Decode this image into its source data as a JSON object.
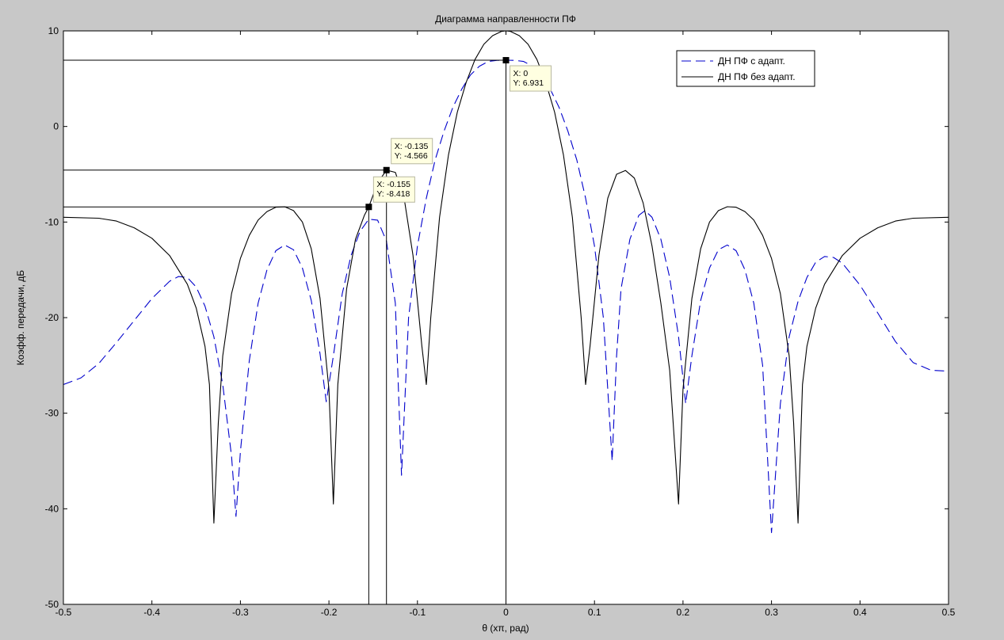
{
  "chart_data": {
    "type": "line",
    "title": "Диаграмма направленности ПФ",
    "xlabel": "θ (xπ, рад)",
    "ylabel": "Коэфф. передачи, дБ",
    "xlim": [
      -0.5,
      0.5
    ],
    "ylim": [
      -50,
      10
    ],
    "xticks": [
      -0.5,
      -0.4,
      -0.3,
      -0.2,
      -0.1,
      0,
      0.1,
      0.2,
      0.3,
      0.4,
      0.5
    ],
    "xtick_labels": [
      "-0.5",
      "-0.4",
      "-0.3",
      "-0.2",
      "-0.1",
      "0",
      "0.1",
      "0.2",
      "0.3",
      "0.4",
      "0.5"
    ],
    "yticks": [
      -50,
      -40,
      -30,
      -20,
      -10,
      0,
      10
    ],
    "ytick_labels": [
      "-50",
      "-40",
      "-30",
      "-20",
      "-10",
      "0",
      "10"
    ],
    "grid": false,
    "legend_position": "top-right",
    "series": [
      {
        "name": "ДН ПФ с адапт.",
        "color": "#0000cc",
        "style": "dashed",
        "points": [
          [
            -0.5,
            -27
          ],
          [
            -0.48,
            -26.3
          ],
          [
            -0.46,
            -24.8
          ],
          [
            -0.44,
            -22.6
          ],
          [
            -0.42,
            -20.3
          ],
          [
            -0.4,
            -18.0
          ],
          [
            -0.38,
            -16.2
          ],
          [
            -0.37,
            -15.7
          ],
          [
            -0.36,
            -15.8
          ],
          [
            -0.35,
            -16.8
          ],
          [
            -0.34,
            -18.8
          ],
          [
            -0.33,
            -22.0
          ],
          [
            -0.32,
            -27.0
          ],
          [
            -0.31,
            -34.5
          ],
          [
            -0.305,
            -40.8
          ],
          [
            -0.3,
            -34.0
          ],
          [
            -0.29,
            -24.5
          ],
          [
            -0.28,
            -18.5
          ],
          [
            -0.27,
            -15.0
          ],
          [
            -0.26,
            -13.0
          ],
          [
            -0.25,
            -12.4
          ],
          [
            -0.24,
            -12.9
          ],
          [
            -0.23,
            -14.8
          ],
          [
            -0.22,
            -18.2
          ],
          [
            -0.21,
            -23.8
          ],
          [
            -0.203,
            -28.8
          ],
          [
            -0.195,
            -24.0
          ],
          [
            -0.185,
            -17.5
          ],
          [
            -0.175,
            -13.5
          ],
          [
            -0.165,
            -11.0
          ],
          [
            -0.155,
            -9.7
          ],
          [
            -0.145,
            -9.8
          ],
          [
            -0.135,
            -12.0
          ],
          [
            -0.125,
            -18.5
          ],
          [
            -0.118,
            -36.5
          ],
          [
            -0.11,
            -20.0
          ],
          [
            -0.1,
            -12.5
          ],
          [
            -0.09,
            -7.5
          ],
          [
            -0.08,
            -3.5
          ],
          [
            -0.07,
            -0.5
          ],
          [
            -0.06,
            2.0
          ],
          [
            -0.05,
            3.9
          ],
          [
            -0.04,
            5.4
          ],
          [
            -0.03,
            6.3
          ],
          [
            -0.02,
            6.8
          ],
          [
            -0.01,
            6.92
          ],
          [
            0,
            6.931
          ],
          [
            0.01,
            6.92
          ],
          [
            0.02,
            6.8
          ],
          [
            0.03,
            6.3
          ],
          [
            0.04,
            5.4
          ],
          [
            0.05,
            3.9
          ],
          [
            0.06,
            2.0
          ],
          [
            0.07,
            -0.5
          ],
          [
            0.08,
            -3.5
          ],
          [
            0.09,
            -7.5
          ],
          [
            0.1,
            -12.5
          ],
          [
            0.11,
            -20.0
          ],
          [
            0.12,
            -35.0
          ],
          [
            0.125,
            -24.0
          ],
          [
            0.13,
            -17.0
          ],
          [
            0.14,
            -11.8
          ],
          [
            0.15,
            -9.3
          ],
          [
            0.157,
            -8.8
          ],
          [
            0.165,
            -9.5
          ],
          [
            0.175,
            -11.8
          ],
          [
            0.185,
            -15.8
          ],
          [
            0.195,
            -22.0
          ],
          [
            0.203,
            -29.0
          ],
          [
            0.21,
            -24.0
          ],
          [
            0.22,
            -18.2
          ],
          [
            0.23,
            -14.8
          ],
          [
            0.24,
            -12.9
          ],
          [
            0.25,
            -12.4
          ],
          [
            0.26,
            -13.0
          ],
          [
            0.27,
            -15.0
          ],
          [
            0.28,
            -18.5
          ],
          [
            0.29,
            -25.0
          ],
          [
            0.3,
            -42.5
          ],
          [
            0.31,
            -29.0
          ],
          [
            0.32,
            -22.0
          ],
          [
            0.33,
            -18.3
          ],
          [
            0.34,
            -15.8
          ],
          [
            0.35,
            -14.2
          ],
          [
            0.36,
            -13.6
          ],
          [
            0.37,
            -13.7
          ],
          [
            0.38,
            -14.3
          ],
          [
            0.4,
            -16.6
          ],
          [
            0.42,
            -19.5
          ],
          [
            0.44,
            -22.5
          ],
          [
            0.46,
            -24.7
          ],
          [
            0.48,
            -25.5
          ],
          [
            0.5,
            -25.6
          ]
        ]
      },
      {
        "name": "ДН ПФ без адапт.",
        "color": "#000000",
        "style": "solid",
        "points": [
          [
            -0.5,
            -9.5
          ],
          [
            -0.46,
            -9.6
          ],
          [
            -0.44,
            -9.9
          ],
          [
            -0.42,
            -10.6
          ],
          [
            -0.4,
            -11.7
          ],
          [
            -0.38,
            -13.5
          ],
          [
            -0.36,
            -16.5
          ],
          [
            -0.35,
            -19.0
          ],
          [
            -0.34,
            -23.0
          ],
          [
            -0.335,
            -27.0
          ],
          [
            -0.33,
            -41.5
          ],
          [
            -0.325,
            -31.0
          ],
          [
            -0.32,
            -24.0
          ],
          [
            -0.31,
            -17.5
          ],
          [
            -0.3,
            -13.8
          ],
          [
            -0.29,
            -11.4
          ],
          [
            -0.28,
            -9.8
          ],
          [
            -0.27,
            -8.9
          ],
          [
            -0.26,
            -8.45
          ],
          [
            -0.25,
            -8.4
          ],
          [
            -0.24,
            -8.8
          ],
          [
            -0.23,
            -10.0
          ],
          [
            -0.22,
            -12.8
          ],
          [
            -0.21,
            -18.0
          ],
          [
            -0.2,
            -27.5
          ],
          [
            -0.195,
            -39.5
          ],
          [
            -0.19,
            -27.0
          ],
          [
            -0.18,
            -17.0
          ],
          [
            -0.17,
            -11.8
          ],
          [
            -0.16,
            -9.3
          ],
          [
            -0.155,
            -8.418
          ],
          [
            -0.145,
            -5.9
          ],
          [
            -0.135,
            -4.566
          ],
          [
            -0.125,
            -4.8
          ],
          [
            -0.115,
            -7.5
          ],
          [
            -0.105,
            -13.5
          ],
          [
            -0.095,
            -23.0
          ],
          [
            -0.09,
            -27.0
          ],
          [
            -0.085,
            -20.0
          ],
          [
            -0.075,
            -9.5
          ],
          [
            -0.065,
            -3.0
          ],
          [
            -0.055,
            1.5
          ],
          [
            -0.045,
            4.6
          ],
          [
            -0.035,
            7.0
          ],
          [
            -0.025,
            8.6
          ],
          [
            -0.015,
            9.5
          ],
          [
            -0.005,
            9.95
          ],
          [
            0,
            10.0
          ],
          [
            0.005,
            9.95
          ],
          [
            0.015,
            9.5
          ],
          [
            0.025,
            8.6
          ],
          [
            0.035,
            7.0
          ],
          [
            0.045,
            4.6
          ],
          [
            0.055,
            1.5
          ],
          [
            0.065,
            -3.0
          ],
          [
            0.075,
            -9.5
          ],
          [
            0.085,
            -20.0
          ],
          [
            0.09,
            -27.0
          ],
          [
            0.095,
            -23.0
          ],
          [
            0.105,
            -13.5
          ],
          [
            0.115,
            -7.5
          ],
          [
            0.125,
            -5.0
          ],
          [
            0.135,
            -4.6
          ],
          [
            0.145,
            -5.4
          ],
          [
            0.155,
            -8.0
          ],
          [
            0.165,
            -12.5
          ],
          [
            0.175,
            -18.5
          ],
          [
            0.185,
            -25.5
          ],
          [
            0.195,
            -39.5
          ],
          [
            0.2,
            -27.5
          ],
          [
            0.21,
            -18.0
          ],
          [
            0.22,
            -12.8
          ],
          [
            0.23,
            -10.0
          ],
          [
            0.24,
            -8.8
          ],
          [
            0.25,
            -8.4
          ],
          [
            0.26,
            -8.45
          ],
          [
            0.27,
            -8.9
          ],
          [
            0.28,
            -9.8
          ],
          [
            0.29,
            -11.4
          ],
          [
            0.3,
            -13.8
          ],
          [
            0.31,
            -17.5
          ],
          [
            0.32,
            -24.0
          ],
          [
            0.325,
            -31.0
          ],
          [
            0.33,
            -41.5
          ],
          [
            0.335,
            -27.0
          ],
          [
            0.34,
            -23.0
          ],
          [
            0.35,
            -19.0
          ],
          [
            0.36,
            -16.5
          ],
          [
            0.38,
            -13.5
          ],
          [
            0.4,
            -11.7
          ],
          [
            0.42,
            -10.6
          ],
          [
            0.44,
            -9.9
          ],
          [
            0.46,
            -9.6
          ],
          [
            0.5,
            -9.5
          ]
        ]
      }
    ],
    "reference_lines": [
      {
        "x": 0,
        "y": 6.931
      },
      {
        "x": -0.135,
        "y": -4.566
      },
      {
        "x": -0.155,
        "y": -8.418
      }
    ],
    "datatips": [
      {
        "x": 0,
        "y": 6.931,
        "lines": [
          "X: 0",
          "Y: 6.931"
        ]
      },
      {
        "x": -0.135,
        "y": -4.566,
        "lines": [
          "X: -0.135",
          "Y: -4.566"
        ]
      },
      {
        "x": -0.155,
        "y": -8.418,
        "lines": [
          "X: -0.155",
          "Y: -8.418"
        ]
      }
    ]
  }
}
